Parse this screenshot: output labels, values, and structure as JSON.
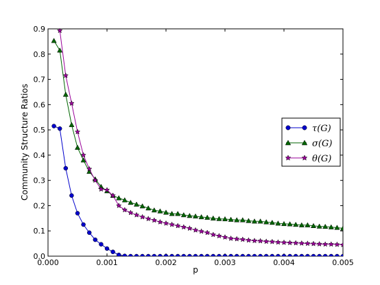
{
  "chart_data": {
    "type": "line",
    "xlabel": "p",
    "ylabel": "Community Structure Ratios",
    "xlim": [
      0.0,
      0.005
    ],
    "ylim": [
      0.0,
      0.9
    ],
    "xticks": [
      "0.000",
      "0.001",
      "0.002",
      "0.003",
      "0.004",
      "0.005"
    ],
    "yticks": [
      "0.0",
      "0.1",
      "0.2",
      "0.3",
      "0.4",
      "0.5",
      "0.6",
      "0.7",
      "0.8",
      "0.9"
    ],
    "grid": false,
    "legend_position": "center-right",
    "x": [
      0.0001,
      0.0002,
      0.0003,
      0.0004,
      0.0005,
      0.0006,
      0.0007,
      0.0008,
      0.0009,
      0.001,
      0.0011,
      0.0012,
      0.0013,
      0.0014,
      0.0015,
      0.0016,
      0.0017,
      0.0018,
      0.0019,
      0.002,
      0.0021,
      0.0022,
      0.0023,
      0.0024,
      0.0025,
      0.0026,
      0.0027,
      0.0028,
      0.0029,
      0.003,
      0.0031,
      0.0032,
      0.0033,
      0.0034,
      0.0035,
      0.0036,
      0.0037,
      0.0038,
      0.0039,
      0.004,
      0.0041,
      0.0042,
      0.0043,
      0.0044,
      0.0045,
      0.0046,
      0.0047,
      0.0048,
      0.0049,
      0.005
    ],
    "series": [
      {
        "name": "τ(G)",
        "color": "#0000cc",
        "marker": "circle",
        "values": [
          0.515,
          0.505,
          0.348,
          0.24,
          0.17,
          0.125,
          0.093,
          0.065,
          0.047,
          0.03,
          0.017,
          0.005,
          0.001,
          0,
          0,
          0,
          0,
          0,
          0,
          0,
          0,
          0,
          0,
          0,
          0,
          0,
          0,
          0,
          0,
          0,
          0,
          0,
          0,
          0,
          0,
          0,
          0,
          0,
          0,
          0,
          0,
          0,
          0,
          0,
          0,
          0,
          0,
          0,
          0,
          0
        ]
      },
      {
        "name": "σ(G)",
        "color": "#006600",
        "marker": "triangle",
        "values": [
          0.853,
          0.815,
          0.64,
          0.52,
          0.43,
          0.38,
          0.335,
          0.305,
          0.275,
          0.258,
          0.24,
          0.23,
          0.222,
          0.212,
          0.205,
          0.198,
          0.19,
          0.182,
          0.178,
          0.173,
          0.168,
          0.168,
          0.163,
          0.16,
          0.158,
          0.155,
          0.153,
          0.15,
          0.148,
          0.147,
          0.145,
          0.143,
          0.143,
          0.14,
          0.138,
          0.138,
          0.135,
          0.133,
          0.13,
          0.128,
          0.127,
          0.125,
          0.123,
          0.123,
          0.12,
          0.118,
          0.117,
          0.115,
          0.113,
          0.11
        ]
      },
      {
        "name": "θ(G)",
        "color": "#990099",
        "marker": "star",
        "values": [
          0.965,
          0.893,
          0.715,
          0.605,
          0.492,
          0.4,
          0.345,
          0.3,
          0.265,
          0.262,
          0.24,
          0.2,
          0.183,
          0.172,
          0.163,
          0.155,
          0.148,
          0.142,
          0.135,
          0.13,
          0.125,
          0.12,
          0.115,
          0.11,
          0.103,
          0.098,
          0.093,
          0.085,
          0.08,
          0.075,
          0.07,
          0.068,
          0.066,
          0.063,
          0.061,
          0.06,
          0.058,
          0.057,
          0.055,
          0.054,
          0.053,
          0.052,
          0.051,
          0.05,
          0.049,
          0.048,
          0.047,
          0.047,
          0.046,
          0.045
        ]
      }
    ]
  }
}
